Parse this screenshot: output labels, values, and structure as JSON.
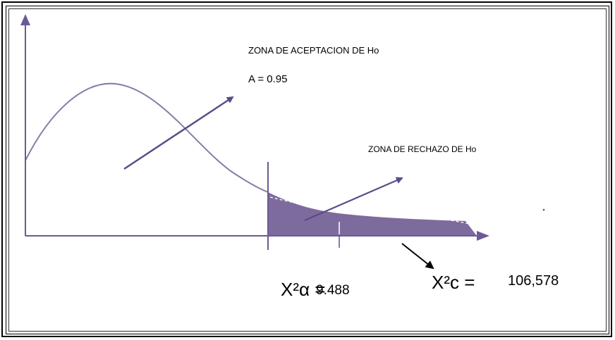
{
  "labels": {
    "acceptance_zone": "ZONA DE ACEPTACION DE Ho",
    "alpha_value": "A = 0.95",
    "rejection_zone": "ZONA DE  RECHAZO DE Ho",
    "chi_alpha_symbol": "X²α =",
    "chi_alpha_value": "9.488",
    "chi_calc_symbol": "X²c =",
    "chi_calc_value": "106,578"
  },
  "colors": {
    "curve": "#8b7ba8",
    "axis": "#6b5a96",
    "rejection_fill": "#7d6b9e",
    "arrow": "#5b4a8a"
  }
}
